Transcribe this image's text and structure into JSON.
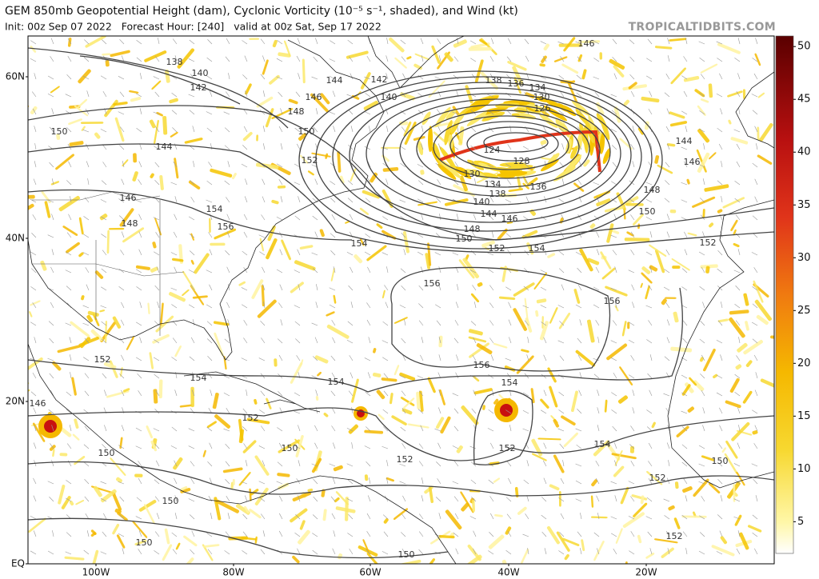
{
  "header": {
    "title": "GEM 850mb Geopotential Height (dam), Cyclonic Vorticity (10⁻⁵ s⁻¹, shaded), and Wind (kt)",
    "subtitle": "Init: 00z Sep 07 2022   Forecast Hour: [240]   valid at 00z Sat, Sep 17 2022",
    "site": "TROPICALTIDBITS.COM"
  },
  "map": {
    "lat_labels": [
      "60N",
      "40N",
      "20N",
      "EQ"
    ],
    "lon_labels": [
      "100W",
      "80W",
      "60W",
      "40W",
      "20W"
    ],
    "contour_labels": [
      "138",
      "140",
      "142",
      "150",
      "144",
      "146",
      "148",
      "154",
      "156",
      "148",
      "150",
      "152",
      "146",
      "144",
      "142",
      "140",
      "138",
      "136",
      "134",
      "130",
      "126",
      "124",
      "128",
      "130",
      "134",
      "136",
      "138",
      "140",
      "144",
      "146",
      "148",
      "150",
      "152",
      "154",
      "154",
      "156",
      "156",
      "146",
      "144",
      "146",
      "148",
      "150",
      "152",
      "152",
      "154",
      "154",
      "156",
      "154",
      "152",
      "152",
      "152",
      "154",
      "150",
      "150",
      "146",
      "152",
      "150",
      "150",
      "150",
      "150",
      "152"
    ]
  },
  "colorbar": {
    "lim": [
      2,
      51
    ],
    "ticks": [
      5,
      10,
      15,
      20,
      25,
      30,
      35,
      40,
      45,
      50
    ]
  }
}
